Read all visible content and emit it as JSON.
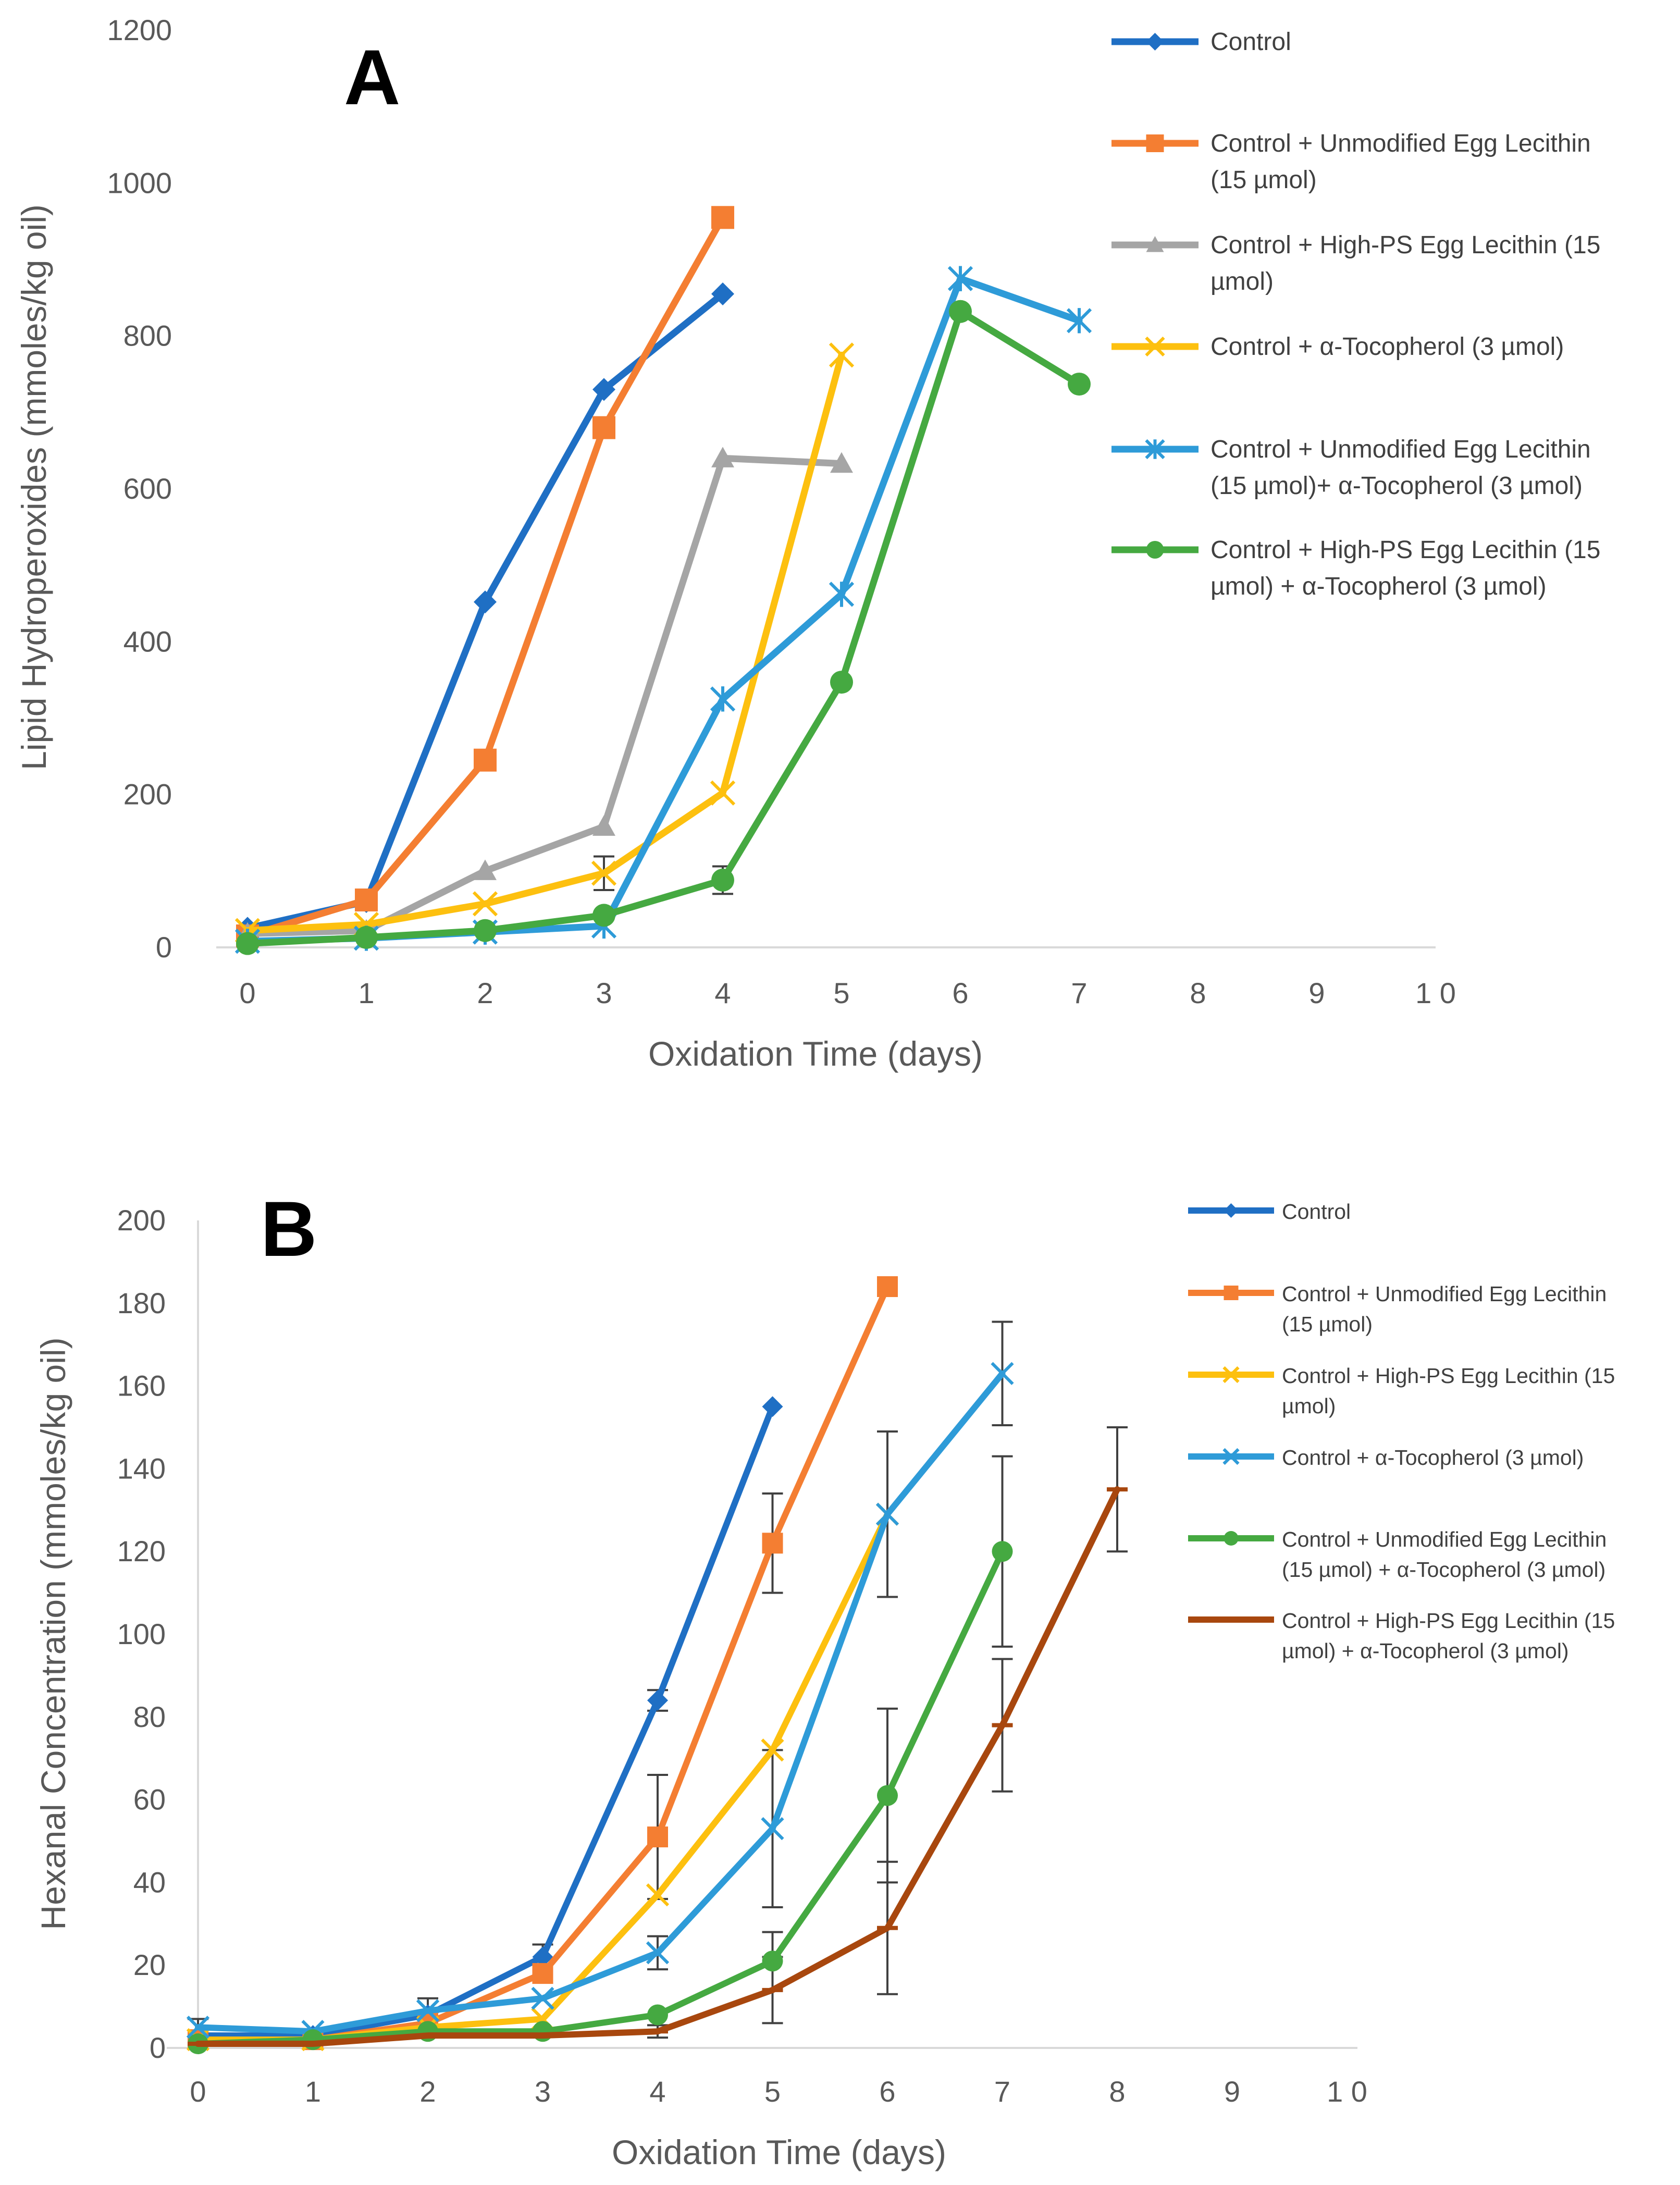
{
  "chart_data": [
    {
      "panel": "A",
      "type": "line",
      "xlabel": "Oxidation Time (days)",
      "ylabel": "Lipid Hydroperoxides (mmoles/kg oil)",
      "xlim": [
        0,
        10
      ],
      "ylim": [
        0,
        1200
      ],
      "xticks": [
        0,
        1,
        2,
        3,
        4,
        5,
        6,
        7,
        8,
        9,
        10
      ],
      "xtick_labels": [
        "0",
        "1",
        "2",
        "3",
        "4",
        "5",
        "6",
        "7",
        "8",
        "9",
        "1 0"
      ],
      "yticks": [
        0,
        200,
        400,
        600,
        800,
        1000,
        1200
      ],
      "grid": false,
      "legend_position": "right",
      "series": [
        {
          "name": "Control",
          "color": "#1f6fc4",
          "marker": "diamond",
          "x": [
            0,
            1,
            2,
            3,
            4
          ],
          "y": [
            25,
            60,
            452,
            730,
            855
          ]
        },
        {
          "name": "Control + Unmodified Egg Lecithin (15 µmol)",
          "legend_lines": [
            "Control + Unmodified Egg Lecithin",
            "(15 µmol)"
          ],
          "color": "#f47e32",
          "marker": "square",
          "x": [
            0,
            1,
            2,
            3,
            4
          ],
          "y": [
            15,
            62,
            245,
            680,
            955
          ]
        },
        {
          "name": "Control + High-PS Egg Lecithin (15 µmol)",
          "legend_lines": [
            "Control + High-PS Egg Lecithin (15",
            "µmol)"
          ],
          "color": "#a5a5a5",
          "marker": "triangle",
          "x": [
            0,
            1,
            2,
            3,
            4,
            5
          ],
          "y": [
            18,
            22,
            100,
            158,
            640,
            633
          ]
        },
        {
          "name": "Control + α-Tocopherol (3 µmol)",
          "legend_lines": [
            "Control + α-Tocopherol (3 µmol)"
          ],
          "color": "#fdc00f",
          "marker": "x",
          "x": [
            0,
            1,
            2,
            3,
            4,
            5
          ],
          "y": [
            22,
            30,
            57,
            97,
            202,
            775
          ]
        },
        {
          "name": "Control + Unmodified Egg Lecithin (15 µmol)+ α-Tocopherol (3 µmol)",
          "legend_lines": [
            "Control + Unmodified Egg Lecithin",
            "(15 µmol)+ α-Tocopherol (3 µmol)"
          ],
          "color": "#2e9bd8",
          "marker": "star",
          "x": [
            0,
            1,
            2,
            3,
            4,
            5,
            6,
            7
          ],
          "y": [
            8,
            12,
            20,
            28,
            325,
            462,
            875,
            820
          ]
        },
        {
          "name": "Control + High-PS Egg Lecithin (15 µmol) + α-Tocopherol (3 µmol)",
          "legend_lines": [
            "Control + High-PS Egg Lecithin (15",
            "µmol) + α-Tocopherol (3 µmol)"
          ],
          "color": "#45a941",
          "marker": "circle",
          "x": [
            0,
            1,
            2,
            3,
            4,
            5,
            6,
            7
          ],
          "y": [
            5,
            13,
            22,
            42,
            88,
            347,
            832,
            737
          ]
        }
      ],
      "error_bars": [
        {
          "x": 3,
          "y": 97,
          "err": 22
        },
        {
          "x": 4,
          "y": 88,
          "err": 18
        }
      ]
    },
    {
      "panel": "B",
      "type": "line",
      "xlabel": "Oxidation Time (days)",
      "ylabel": "Hexanal Concentration (mmoles/kg oil)",
      "xlim": [
        0,
        10
      ],
      "ylim": [
        0,
        200
      ],
      "xticks": [
        0,
        1,
        2,
        3,
        4,
        5,
        6,
        7,
        8,
        9,
        10
      ],
      "xtick_labels": [
        "0",
        "1",
        "2",
        "3",
        "4",
        "5",
        "6",
        "7",
        "8",
        "9",
        "1 0"
      ],
      "yticks": [
        0,
        20,
        40,
        60,
        80,
        100,
        120,
        140,
        160,
        180,
        200
      ],
      "grid": false,
      "legend_position": "right",
      "series": [
        {
          "name": "Control",
          "color": "#1f6fc4",
          "marker": "diamond",
          "x": [
            0,
            1,
            2,
            3,
            4,
            5
          ],
          "y": [
            3,
            3,
            8,
            22,
            84,
            155
          ]
        },
        {
          "name": "Control + Unmodified Egg Lecithin (15 µmol)",
          "legend_lines": [
            "Control + Unmodified Egg Lecithin",
            "(15 µmol)"
          ],
          "color": "#f47e32",
          "marker": "square",
          "x": [
            0,
            1,
            2,
            3,
            4,
            5,
            6
          ],
          "y": [
            2,
            2,
            6,
            18,
            51,
            122,
            184
          ]
        },
        {
          "name": "Control + High-PS Egg Lecithin (15 µmol)",
          "legend_lines": [
            "Control + High-PS Egg Lecithin (15",
            "µmol)"
          ],
          "color": "#fdc00f",
          "marker": "x",
          "x": [
            0,
            1,
            2,
            3,
            4,
            5,
            6
          ],
          "y": [
            2,
            2,
            5,
            7,
            37,
            72,
            129
          ]
        },
        {
          "name": "Control + α-Tocopherol (3 µmol)",
          "legend_lines": [
            "Control + α-Tocopherol (3 µmol)"
          ],
          "color": "#2e9bd8",
          "marker": "x",
          "x": [
            0,
            1,
            2,
            3,
            4,
            5,
            6,
            7
          ],
          "y": [
            5,
            4,
            9,
            12,
            23,
            53,
            129,
            163
          ]
        },
        {
          "name": "Control + Unmodified Egg Lecithin (15 µmol) + α-Tocopherol (3 µmol)",
          "legend_lines": [
            "Control + Unmodified Egg Lecithin",
            "(15 µmol) +  α-Tocopherol (3 µmol)"
          ],
          "color": "#45a941",
          "marker": "circle",
          "x": [
            0,
            1,
            2,
            3,
            4,
            5,
            6,
            7
          ],
          "y": [
            1,
            2,
            4,
            4,
            8,
            21,
            61,
            120
          ]
        },
        {
          "name": "Control + High-PS Egg Lecithin (15 µmol) + α-Tocopherol (3 µmol)",
          "legend_lines": [
            "Control + High-PS Egg Lecithin (15",
            "µmol) +  α-Tocopherol (3 µmol)"
          ],
          "color": "#a8470e",
          "marker": "dash",
          "x": [
            0,
            1,
            2,
            3,
            4,
            5,
            6,
            7,
            8
          ],
          "y": [
            1,
            1,
            3,
            3,
            4,
            14,
            29,
            78,
            135
          ]
        }
      ],
      "error_bars": [
        {
          "x": 0,
          "y": 5,
          "err": 2
        },
        {
          "x": 2,
          "y": 9,
          "err": 3
        },
        {
          "x": 3,
          "y": 22,
          "err": 3
        },
        {
          "x": 4,
          "y": 84,
          "err": 2.5
        },
        {
          "x": 4,
          "y": 51,
          "err": 15
        },
        {
          "x": 4,
          "y": 23,
          "err": 4
        },
        {
          "x": 4,
          "y": 4,
          "err": 1.5
        },
        {
          "x": 5,
          "y": 122,
          "err": 12
        },
        {
          "x": 5,
          "y": 53,
          "err": 19
        },
        {
          "x": 5,
          "y": 21,
          "err": 7
        },
        {
          "x": 5,
          "y": 14,
          "err": 8
        },
        {
          "x": 6,
          "y": 129,
          "err": 20
        },
        {
          "x": 6,
          "y": 61,
          "err": 21
        },
        {
          "x": 6,
          "y": 29,
          "err": 16
        },
        {
          "x": 7,
          "y": 163,
          "err": 12.5
        },
        {
          "x": 7,
          "y": 120,
          "err": 23
        },
        {
          "x": 7,
          "y": 78,
          "err": 16
        },
        {
          "x": 8,
          "y": 135,
          "err": 15
        }
      ]
    }
  ]
}
